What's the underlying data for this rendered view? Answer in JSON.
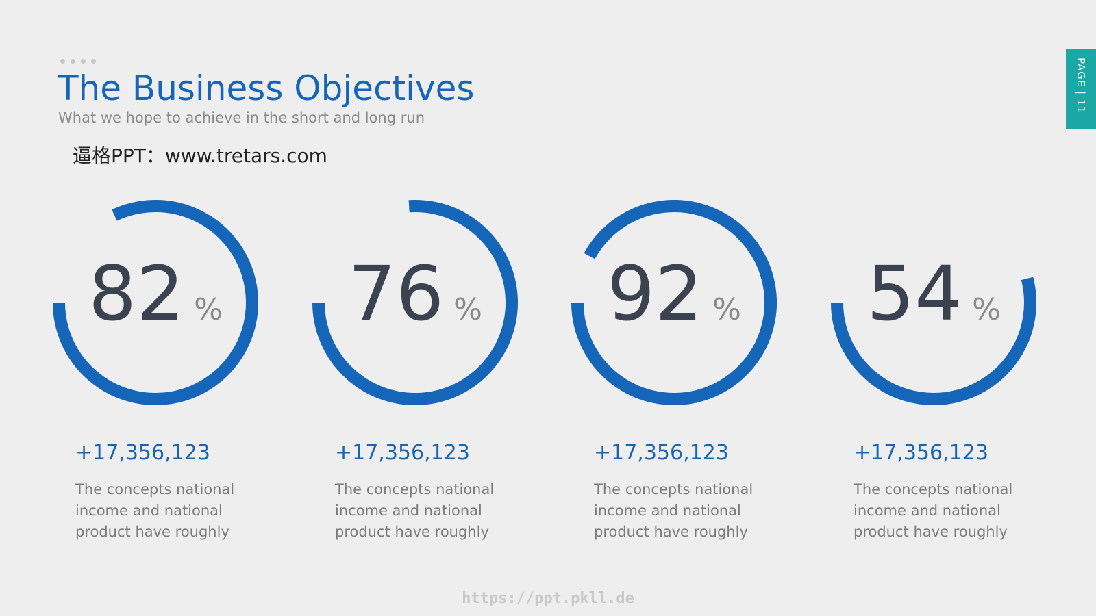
{
  "header": {
    "title": "The Business Objectives",
    "subtitle": "What we hope to achieve in the short and long run",
    "watermark": "逼格PPT：www.tretars.com"
  },
  "page_tab": {
    "label": "PAGE | 11"
  },
  "colors": {
    "accent": "#1565b8",
    "tab": "#1ba8a4",
    "number": "#3b4350"
  },
  "stats": [
    {
      "value": 82,
      "unit": "%",
      "delta": "+17,356,123",
      "description": "The concepts national income and national product have roughly"
    },
    {
      "value": 76,
      "unit": "%",
      "delta": "+17,356,123",
      "description": "The concepts national income and national product have roughly"
    },
    {
      "value": 92,
      "unit": "%",
      "delta": "+17,356,123",
      "description": "The concepts national income and national product have roughly"
    },
    {
      "value": 54,
      "unit": "%",
      "delta": "+17,356,123",
      "description": "The concepts national income and national product have roughly"
    }
  ],
  "footer": {
    "url": "https://ppt.pkll.de"
  }
}
